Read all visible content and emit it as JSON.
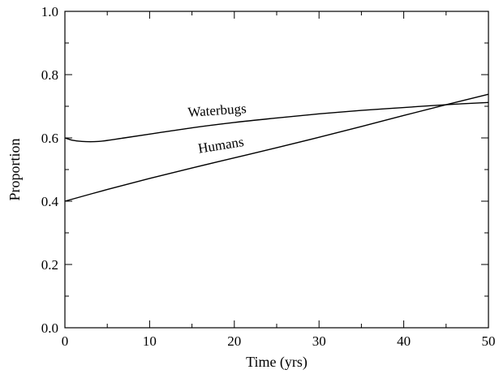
{
  "chart_data": {
    "type": "line",
    "title": "",
    "xlabel": "Time (yrs)",
    "ylabel": "Proportion",
    "xlim": [
      0,
      50
    ],
    "ylim": [
      0.0,
      1.0
    ],
    "x_ticks": [
      0,
      10,
      20,
      30,
      40,
      50
    ],
    "x_tick_labels": [
      "0",
      "10",
      "20",
      "30",
      "40",
      "50"
    ],
    "y_ticks": [
      0.0,
      0.2,
      0.4,
      0.6,
      0.8,
      1.0
    ],
    "y_tick_labels": [
      "0.0",
      "0.2",
      "0.4",
      "0.6",
      "0.8",
      "1.0"
    ],
    "grid": false,
    "legend": "none",
    "series": [
      {
        "name": "Waterbugs",
        "x": [
          0,
          1,
          2,
          3,
          4,
          5,
          7,
          10,
          15,
          20,
          25,
          30,
          35,
          40,
          45,
          50
        ],
        "y": [
          0.6,
          0.592,
          0.589,
          0.588,
          0.589,
          0.592,
          0.6,
          0.612,
          0.632,
          0.649,
          0.663,
          0.676,
          0.687,
          0.696,
          0.705,
          0.712
        ]
      },
      {
        "name": "Humans",
        "x": [
          0,
          5,
          10,
          15,
          20,
          25,
          30,
          35,
          40,
          45,
          50
        ],
        "y": [
          0.4,
          0.437,
          0.472,
          0.505,
          0.537,
          0.569,
          0.602,
          0.636,
          0.671,
          0.705,
          0.738
        ]
      }
    ]
  }
}
